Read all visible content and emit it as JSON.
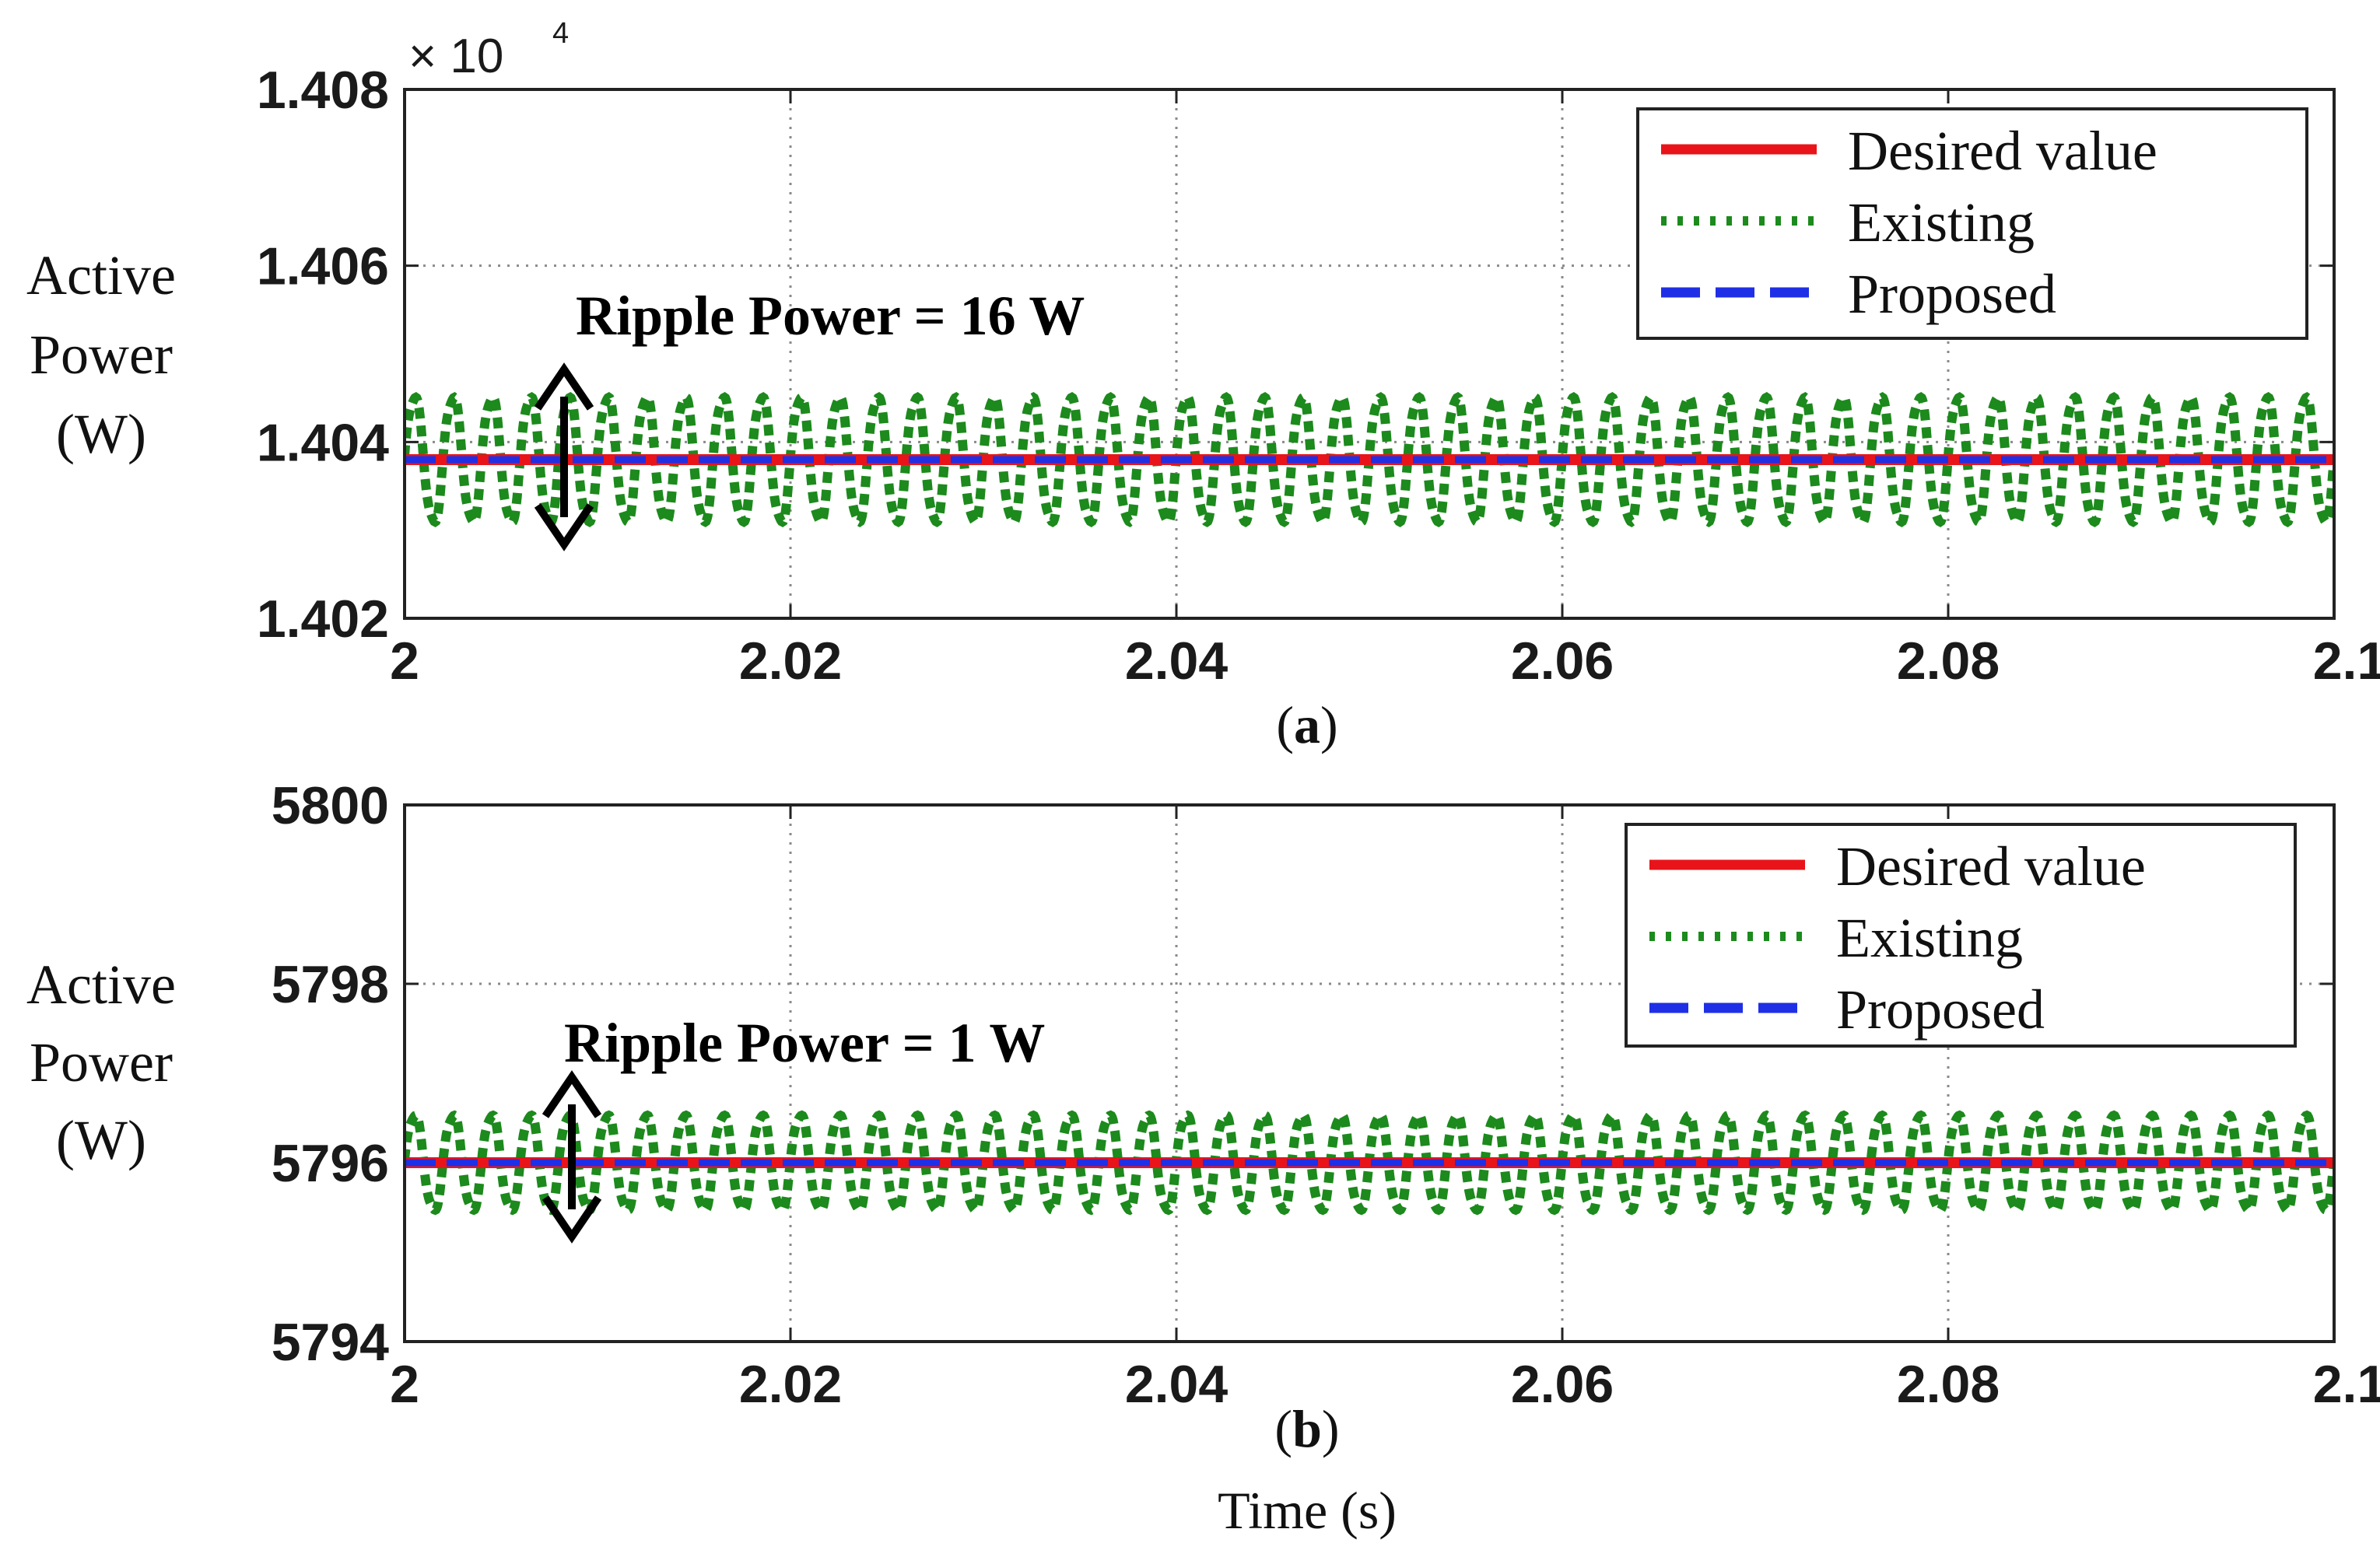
{
  "chart_data": [
    {
      "type": "line",
      "panel": "a",
      "caption_letter": "a",
      "ylabel_lines": [
        "Active",
        "Power",
        "(W)"
      ],
      "xlim": [
        2,
        2.1
      ],
      "ylim": [
        14020,
        14080
      ],
      "x_ticks": [
        "2",
        "2.02",
        "2.04",
        "2.06",
        "2.08",
        "2.1"
      ],
      "y_ticks": [
        "1.402",
        "1.404",
        "1.406",
        "1.408"
      ],
      "y_multiplier_base": "× 10",
      "y_multiplier_exp": "4",
      "grid": true,
      "legend_position": "top-right",
      "annotation": "Ripple Power = 16 W",
      "series": [
        {
          "name": "Desired value",
          "style": "solid",
          "color": "#e8141a",
          "value": 14038
        },
        {
          "name": "Existing",
          "style": "dotted",
          "color": "#1c8a1c",
          "mean": 14038,
          "ripple_pp": 16,
          "cycles": 50
        },
        {
          "name": "Proposed",
          "style": "dashed",
          "color": "#1f2fe6",
          "value": 14038
        }
      ]
    },
    {
      "type": "line",
      "panel": "b",
      "caption_letter": "b",
      "ylabel_lines": [
        "Active",
        "Power",
        "(W)"
      ],
      "xlim": [
        2,
        2.1
      ],
      "ylim": [
        5794,
        5800
      ],
      "x_ticks": [
        "2",
        "2.02",
        "2.04",
        "2.06",
        "2.08",
        "2.1"
      ],
      "y_ticks": [
        "5794",
        "5796",
        "5798",
        "5800"
      ],
      "grid": true,
      "legend_position": "top-right",
      "annotation": "Ripple Power = 1 W",
      "series": [
        {
          "name": "Desired value",
          "style": "solid",
          "color": "#e8141a",
          "value": 5796
        },
        {
          "name": "Existing",
          "style": "dotted",
          "color": "#1c8a1c",
          "mean": 5796,
          "ripple_pp": 1.2,
          "cycles": 50
        },
        {
          "name": "Proposed",
          "style": "dashed",
          "color": "#1f2fe6",
          "value": 5796
        }
      ]
    }
  ],
  "xlabel": "Time (s)"
}
